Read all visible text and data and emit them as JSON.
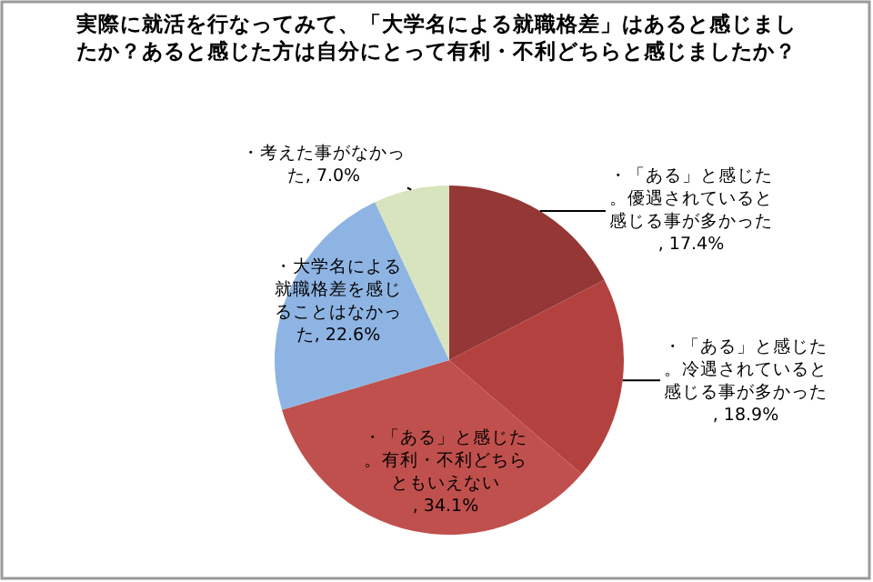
{
  "chart_data": {
    "type": "pie",
    "title": "実際に就活を行なってみて、「大学名による就職格差」はあると感じましたか？あると感じた方は自分にとって有利・不利どちらと感じましたか？",
    "categories": [
      "・「ある」と感じた。優遇されていると感じる事が多かった",
      "・「ある」と感じた。冷遇されていると感じる事が多かった",
      "・「ある」と感じた。有利・不利どちらともいえない",
      "・大学名による就職格差を感じることはなかった",
      "・考えた事がなかった"
    ],
    "values": [
      17.4,
      18.9,
      34.1,
      22.6,
      7.0
    ],
    "value_labels": [
      ", 17.4%",
      ", 18.9%",
      ", 34.1%",
      ", 22.6%",
      ", 7.0%"
    ],
    "colors": [
      "#953735",
      "#b3413f",
      "#c0504d",
      "#8eb4e3",
      "#d7e4bd"
    ]
  }
}
